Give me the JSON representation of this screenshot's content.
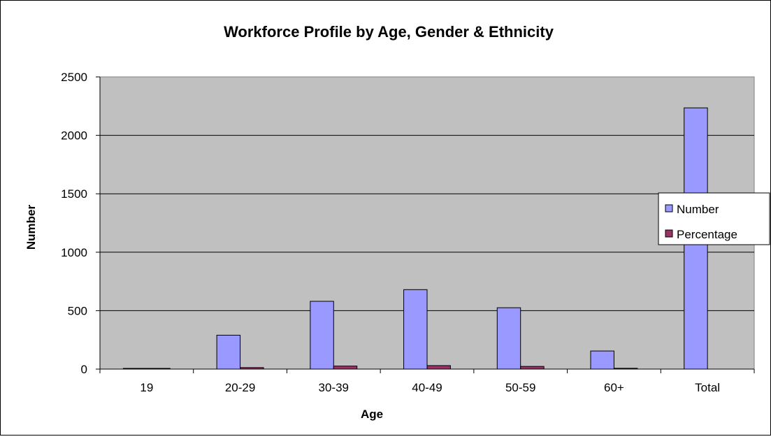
{
  "chart_data": {
    "type": "bar",
    "title": "Workforce Profile by Age, Gender & Ethnicity",
    "xlabel": "Age",
    "ylabel": "Number",
    "categories": [
      "19",
      "20-29",
      "30-39",
      "40-49",
      "50-59",
      "60+",
      "Total"
    ],
    "series": [
      {
        "name": "Number",
        "values": [
          5,
          290,
          580,
          680,
          525,
          155,
          2235
        ],
        "color": "#9999ff"
      },
      {
        "name": "Percentage",
        "values": [
          0.2,
          13,
          26,
          30,
          23,
          7,
          null
        ],
        "color": "#993366"
      }
    ],
    "ylim": [
      0,
      2500
    ],
    "yticks": [
      0,
      500,
      1000,
      1500,
      2000,
      2500
    ],
    "grid": true,
    "plot_background": "#c0c0c0",
    "legend_position": "right"
  }
}
